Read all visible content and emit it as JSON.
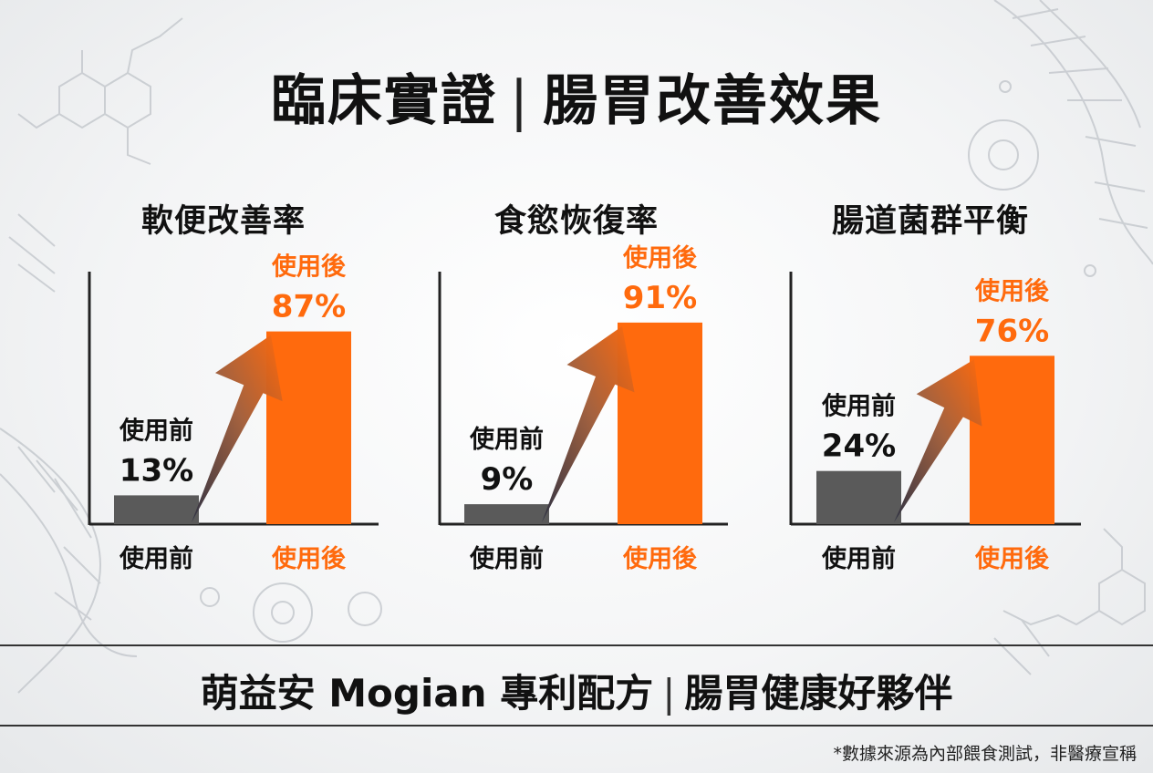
{
  "title": {
    "left": "臨床實證",
    "right": "腸胃改善效果"
  },
  "colors": {
    "before_bar": "#5a5a5a",
    "after_bar": "#ff6a0d",
    "after_text": "#ff6a0d",
    "axis": "#222222"
  },
  "chart_data": [
    {
      "type": "bar",
      "title": "軟便改善率",
      "categories": [
        "使用前",
        "使用後"
      ],
      "values": [
        13,
        87
      ],
      "value_labels": [
        "13%",
        "87%"
      ],
      "unit": "%",
      "ylim": [
        0,
        100
      ]
    },
    {
      "type": "bar",
      "title": "食慾恢復率",
      "categories": [
        "使用前",
        "使用後"
      ],
      "values": [
        9,
        91
      ],
      "value_labels": [
        "9%",
        "91%"
      ],
      "unit": "%",
      "ylim": [
        0,
        100
      ]
    },
    {
      "type": "bar",
      "title": "腸道菌群平衡",
      "categories": [
        "使用前",
        "使用後"
      ],
      "values": [
        24,
        76
      ],
      "value_labels": [
        "24%",
        "76%"
      ],
      "unit": "%",
      "ylim": [
        0,
        100
      ]
    }
  ],
  "footer": {
    "left": "萌益安 Mogian 專利配方",
    "right": "腸胃健康好夥伴",
    "note": "*數據來源為內部餵食測試，非醫療宣稱"
  }
}
